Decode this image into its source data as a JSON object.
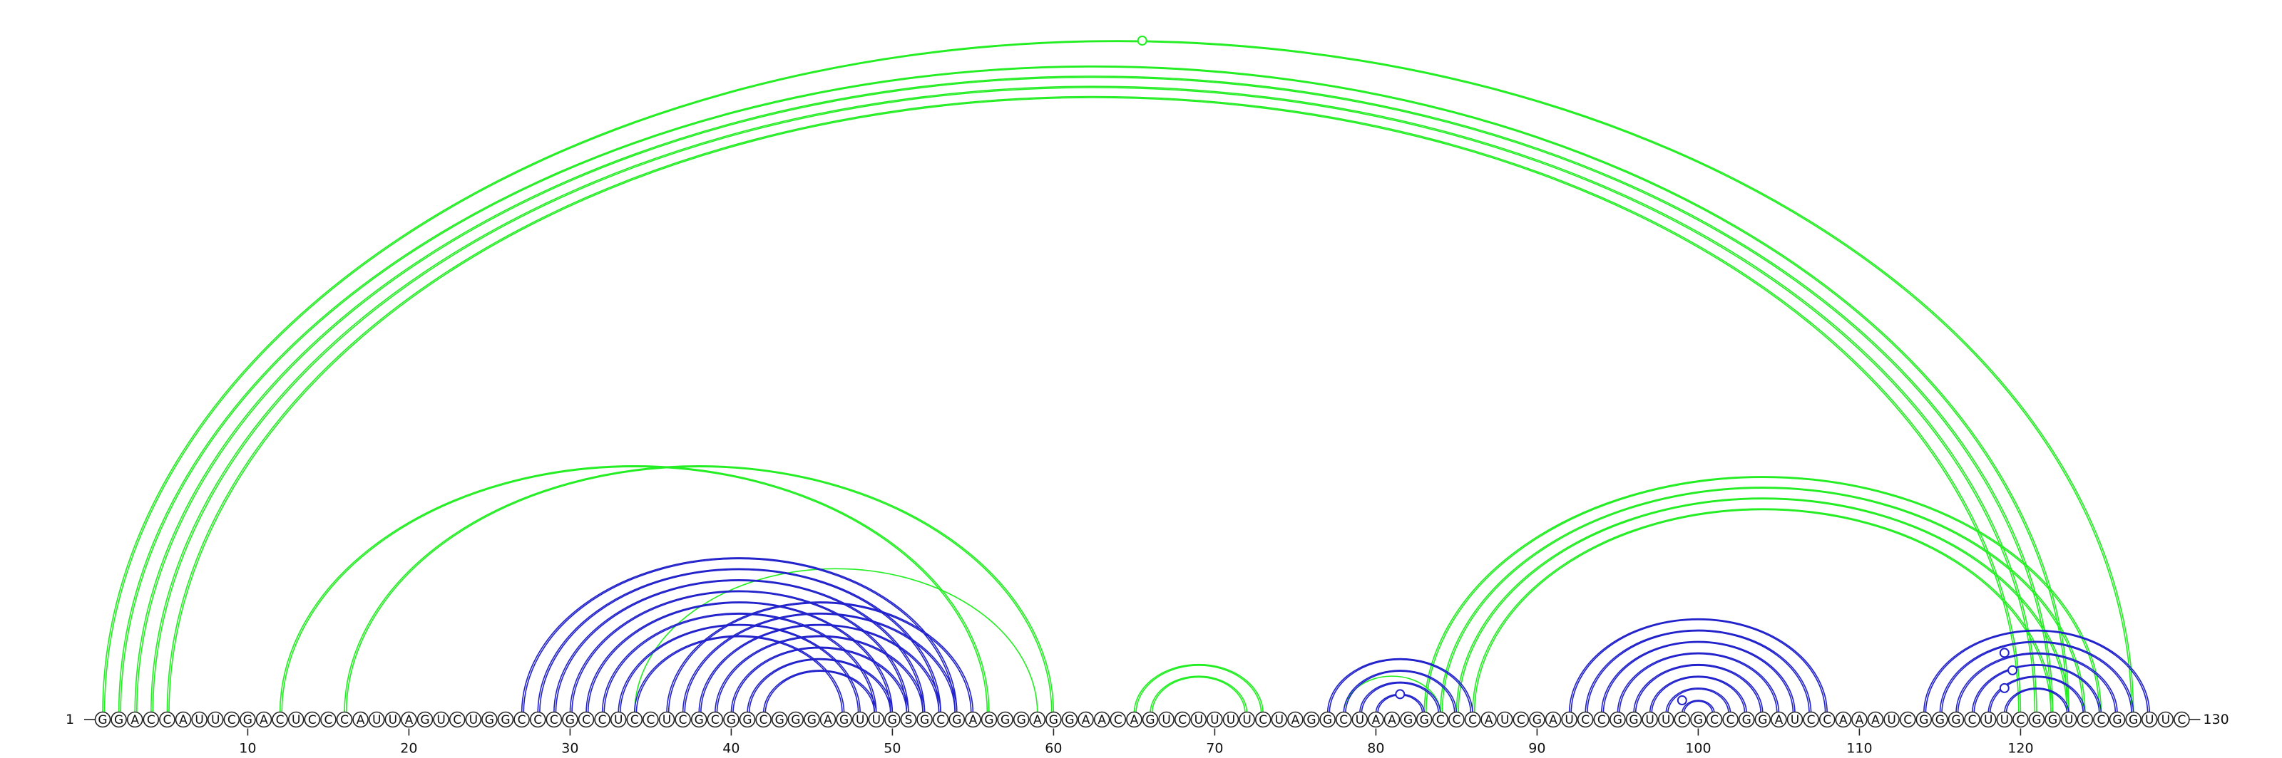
{
  "chart_data": {
    "type": "arc-diagram",
    "title": "",
    "sequence": "GGACCAUUCGACUCCCAUUAGUCUGGCCCGCCUCCUCGCGGCGGGAGUUGSGCGAGGGAGGAACAGUCUUUUCUAGGCUAAGGCCCAUCGAUCCGGUUCGCCGGAUCCAAAUCGGGCUUCGGUCCGGUUC",
    "length": 130,
    "start_label": "1",
    "end_label": "130",
    "tick_labels": [
      "10",
      "20",
      "30",
      "40",
      "50",
      "60",
      "70",
      "80",
      "90",
      "100",
      "110",
      "120"
    ],
    "tick_positions": [
      10,
      20,
      30,
      40,
      50,
      60,
      70,
      80,
      90,
      100,
      110,
      120
    ],
    "colors": {
      "green": "#22ee22",
      "blue": "#2222cc"
    },
    "green_pairs": [
      [
        1,
        127,
        2
      ],
      [
        2,
        123,
        2
      ],
      [
        3,
        122,
        2
      ],
      [
        4,
        121,
        2
      ],
      [
        5,
        120,
        2
      ],
      [
        12,
        56,
        2
      ],
      [
        16,
        60,
        2
      ],
      [
        34,
        59,
        1
      ],
      [
        65,
        73,
        2
      ],
      [
        66,
        72,
        2
      ],
      [
        78,
        84,
        1
      ],
      [
        83,
        125,
        2
      ],
      [
        84,
        124,
        2
      ],
      [
        85,
        123,
        2
      ],
      [
        86,
        122,
        2
      ]
    ],
    "blue_pairs": [
      [
        27,
        54
      ],
      [
        28,
        53
      ],
      [
        29,
        52
      ],
      [
        30,
        51
      ],
      [
        31,
        50
      ],
      [
        32,
        49
      ],
      [
        33,
        48
      ],
      [
        34,
        47
      ],
      [
        36,
        55
      ],
      [
        37,
        54
      ],
      [
        38,
        53
      ],
      [
        39,
        52
      ],
      [
        40,
        51
      ],
      [
        41,
        50
      ],
      [
        42,
        49
      ],
      [
        77,
        86
      ],
      [
        78,
        85
      ],
      [
        79,
        84
      ],
      [
        80,
        83
      ],
      [
        92,
        108
      ],
      [
        93,
        107
      ],
      [
        94,
        106
      ],
      [
        95,
        105
      ],
      [
        96,
        104
      ],
      [
        97,
        103
      ],
      [
        98,
        102
      ],
      [
        99,
        101
      ],
      [
        114,
        128
      ],
      [
        115,
        127
      ],
      [
        116,
        126
      ],
      [
        117,
        125
      ],
      [
        118,
        124
      ],
      [
        119,
        123
      ]
    ],
    "markers": [
      {
        "x": 65.5,
        "color": "green",
        "on": [
          1,
          127
        ]
      },
      {
        "x": 81.5,
        "color": "blue",
        "on": [
          80,
          83
        ]
      },
      {
        "x": 99.0,
        "color": "blue",
        "on": [
          98,
          100
        ]
      },
      {
        "x": 119.0,
        "color": "blue",
        "on": [
          114,
          124
        ]
      },
      {
        "x": 119.5,
        "color": "blue",
        "on": [
          116,
          123
        ]
      },
      {
        "x": 119.0,
        "color": "blue",
        "on": [
          117,
          121
        ]
      }
    ]
  }
}
